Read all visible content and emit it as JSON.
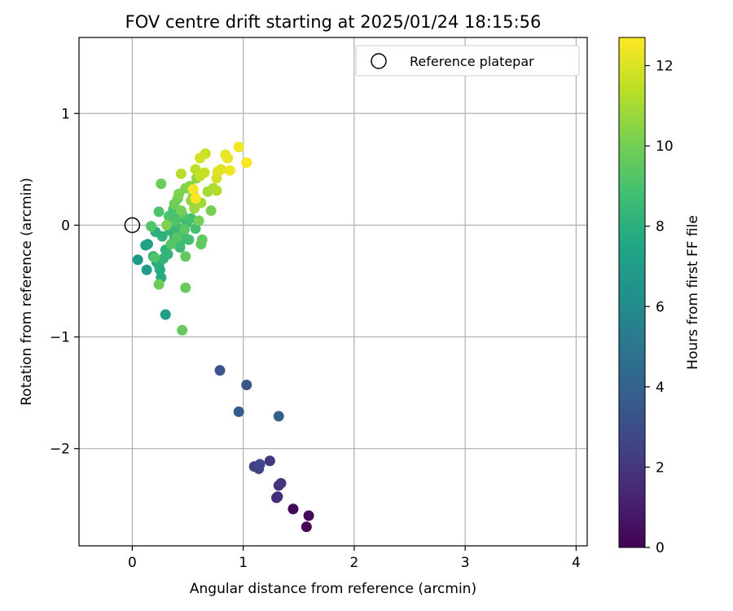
{
  "chart_data": {
    "type": "scatter",
    "title": "FOV centre drift starting at 2025/01/24 18:15:56",
    "xlabel": "Angular distance from reference (arcmin)",
    "ylabel": "Rotation from reference (arcmin)",
    "xlim": [
      -0.48,
      4.1
    ],
    "ylim": [
      -2.87,
      1.68
    ],
    "xticks": [
      0,
      1,
      2,
      3,
      4
    ],
    "xtick_labels": [
      "0",
      "1",
      "2",
      "3",
      "4"
    ],
    "yticks": [
      -2,
      -1,
      0,
      1
    ],
    "ytick_labels": [
      "−2",
      "−1",
      "0",
      "1"
    ],
    "grid": true,
    "legend": {
      "position": "top-right",
      "entries": [
        {
          "label": "Reference platepar",
          "marker": "open-circle"
        }
      ]
    },
    "reference_point": {
      "x": 0,
      "y": 0
    },
    "colorbar": {
      "label": "Hours from first FF file",
      "colormap": "viridis",
      "range": [
        0,
        12.7
      ],
      "ticks": [
        0,
        2,
        4,
        6,
        8,
        10,
        12
      ],
      "tick_labels": [
        "0",
        "2",
        "4",
        "6",
        "8",
        "10",
        "12"
      ]
    },
    "points": [
      {
        "x": 1.45,
        "y": -2.54,
        "t": 0.2
      },
      {
        "x": 1.57,
        "y": -2.7,
        "t": 0.1
      },
      {
        "x": 1.59,
        "y": -2.6,
        "t": 0.3
      },
      {
        "x": 1.3,
        "y": -2.44,
        "t": 1.5
      },
      {
        "x": 1.31,
        "y": -2.43,
        "t": 1.6
      },
      {
        "x": 1.32,
        "y": -2.33,
        "t": 1.8
      },
      {
        "x": 1.34,
        "y": -2.31,
        "t": 1.9
      },
      {
        "x": 1.24,
        "y": -2.11,
        "t": 2.1
      },
      {
        "x": 1.1,
        "y": -2.16,
        "t": 2.3
      },
      {
        "x": 1.14,
        "y": -2.18,
        "t": 2.5
      },
      {
        "x": 1.15,
        "y": -2.14,
        "t": 2.7
      },
      {
        "x": 0.79,
        "y": -1.3,
        "t": 3.2
      },
      {
        "x": 1.03,
        "y": -1.43,
        "t": 3.4
      },
      {
        "x": 0.96,
        "y": -1.67,
        "t": 3.6
      },
      {
        "x": 1.32,
        "y": -1.71,
        "t": 3.8
      },
      {
        "x": 0.05,
        "y": -0.31,
        "t": 6.8
      },
      {
        "x": 0.13,
        "y": -0.4,
        "t": 6.9
      },
      {
        "x": 0.3,
        "y": -0.8,
        "t": 7.0
      },
      {
        "x": 0.12,
        "y": -0.18,
        "t": 7.2
      },
      {
        "x": 0.14,
        "y": -0.17,
        "t": 7.3
      },
      {
        "x": 0.19,
        "y": -0.28,
        "t": 7.5
      },
      {
        "x": 0.22,
        "y": -0.33,
        "t": 7.6
      },
      {
        "x": 0.25,
        "y": -0.4,
        "t": 7.7
      },
      {
        "x": 0.26,
        "y": -0.47,
        "t": 7.8
      },
      {
        "x": 0.24,
        "y": -0.36,
        "t": 7.9
      },
      {
        "x": 0.21,
        "y": -0.06,
        "t": 8.0
      },
      {
        "x": 0.27,
        "y": -0.1,
        "t": 8.1
      },
      {
        "x": 0.3,
        "y": -0.22,
        "t": 8.2
      },
      {
        "x": 0.32,
        "y": -0.26,
        "t": 8.2
      },
      {
        "x": 0.28,
        "y": -0.3,
        "t": 8.3
      },
      {
        "x": 0.34,
        "y": -0.05,
        "t": 8.3
      },
      {
        "x": 0.36,
        "y": 0.03,
        "t": 8.4
      },
      {
        "x": 0.38,
        "y": -0.12,
        "t": 8.4
      },
      {
        "x": 0.4,
        "y": -0.02,
        "t": 8.5
      },
      {
        "x": 0.42,
        "y": 0.07,
        "t": 8.5
      },
      {
        "x": 0.44,
        "y": -0.14,
        "t": 8.6
      },
      {
        "x": 0.43,
        "y": -0.2,
        "t": 8.6
      },
      {
        "x": 0.46,
        "y": -0.08,
        "t": 8.7
      },
      {
        "x": 0.49,
        "y": 0.02,
        "t": 8.7
      },
      {
        "x": 0.51,
        "y": -0.13,
        "t": 8.8
      },
      {
        "x": 0.53,
        "y": 0.06,
        "t": 8.9
      },
      {
        "x": 0.57,
        "y": -0.03,
        "t": 8.9
      },
      {
        "x": 0.33,
        "y": 0.08,
        "t": 9.0
      },
      {
        "x": 0.37,
        "y": 0.14,
        "t": 9.0
      },
      {
        "x": 0.39,
        "y": 0.03,
        "t": 9.1
      },
      {
        "x": 0.24,
        "y": 0.12,
        "t": 9.1
      },
      {
        "x": 0.17,
        "y": -0.01,
        "t": 9.2
      },
      {
        "x": 0.2,
        "y": -0.29,
        "t": 9.2
      },
      {
        "x": 0.35,
        "y": -0.17,
        "t": 9.3
      },
      {
        "x": 0.4,
        "y": -0.11,
        "t": 9.3
      },
      {
        "x": 0.45,
        "y": 0.1,
        "t": 9.4
      },
      {
        "x": 0.47,
        "y": -0.04,
        "t": 9.4
      },
      {
        "x": 0.62,
        "y": -0.17,
        "t": 9.5
      },
      {
        "x": 0.63,
        "y": -0.13,
        "t": 9.6
      },
      {
        "x": 0.48,
        "y": -0.28,
        "t": 9.6
      },
      {
        "x": 0.48,
        "y": -0.56,
        "t": 9.7
      },
      {
        "x": 0.45,
        "y": -0.94,
        "t": 9.7
      },
      {
        "x": 0.24,
        "y": -0.53,
        "t": 9.8
      },
      {
        "x": 0.26,
        "y": 0.37,
        "t": 9.8
      },
      {
        "x": 0.38,
        "y": 0.19,
        "t": 9.9
      },
      {
        "x": 0.41,
        "y": 0.24,
        "t": 9.9
      },
      {
        "x": 0.44,
        "y": 0.13,
        "t": 10.0
      },
      {
        "x": 0.6,
        "y": 0.04,
        "t": 10.0
      },
      {
        "x": 0.71,
        "y": 0.13,
        "t": 10.1
      },
      {
        "x": 0.31,
        "y": 0.0,
        "t": 10.2
      },
      {
        "x": 0.42,
        "y": 0.28,
        "t": 10.2
      },
      {
        "x": 0.48,
        "y": 0.33,
        "t": 10.3
      },
      {
        "x": 0.52,
        "y": 0.35,
        "t": 10.4
      },
      {
        "x": 0.55,
        "y": 0.27,
        "t": 10.5
      },
      {
        "x": 0.58,
        "y": 0.42,
        "t": 10.6
      },
      {
        "x": 0.53,
        "y": 0.22,
        "t": 10.7
      },
      {
        "x": 0.56,
        "y": 0.15,
        "t": 10.8
      },
      {
        "x": 0.62,
        "y": 0.2,
        "t": 10.9
      },
      {
        "x": 0.68,
        "y": 0.3,
        "t": 11.0
      },
      {
        "x": 0.73,
        "y": 0.33,
        "t": 11.1
      },
      {
        "x": 0.76,
        "y": 0.31,
        "t": 11.2
      },
      {
        "x": 0.44,
        "y": 0.46,
        "t": 11.3
      },
      {
        "x": 0.57,
        "y": 0.5,
        "t": 11.4
      },
      {
        "x": 0.61,
        "y": 0.44,
        "t": 11.5
      },
      {
        "x": 0.65,
        "y": 0.47,
        "t": 11.6
      },
      {
        "x": 0.66,
        "y": 0.64,
        "t": 11.7
      },
      {
        "x": 0.61,
        "y": 0.6,
        "t": 11.8
      },
      {
        "x": 0.76,
        "y": 0.42,
        "t": 11.9
      },
      {
        "x": 0.77,
        "y": 0.48,
        "t": 12.0
      },
      {
        "x": 0.8,
        "y": 0.5,
        "t": 12.1
      },
      {
        "x": 0.84,
        "y": 0.63,
        "t": 12.2
      },
      {
        "x": 0.86,
        "y": 0.6,
        "t": 12.3
      },
      {
        "x": 0.88,
        "y": 0.49,
        "t": 12.4
      },
      {
        "x": 0.96,
        "y": 0.7,
        "t": 12.5
      },
      {
        "x": 1.03,
        "y": 0.56,
        "t": 12.6
      },
      {
        "x": 0.57,
        "y": 0.24,
        "t": 12.6
      },
      {
        "x": 0.55,
        "y": 0.32,
        "t": 12.5
      }
    ]
  }
}
